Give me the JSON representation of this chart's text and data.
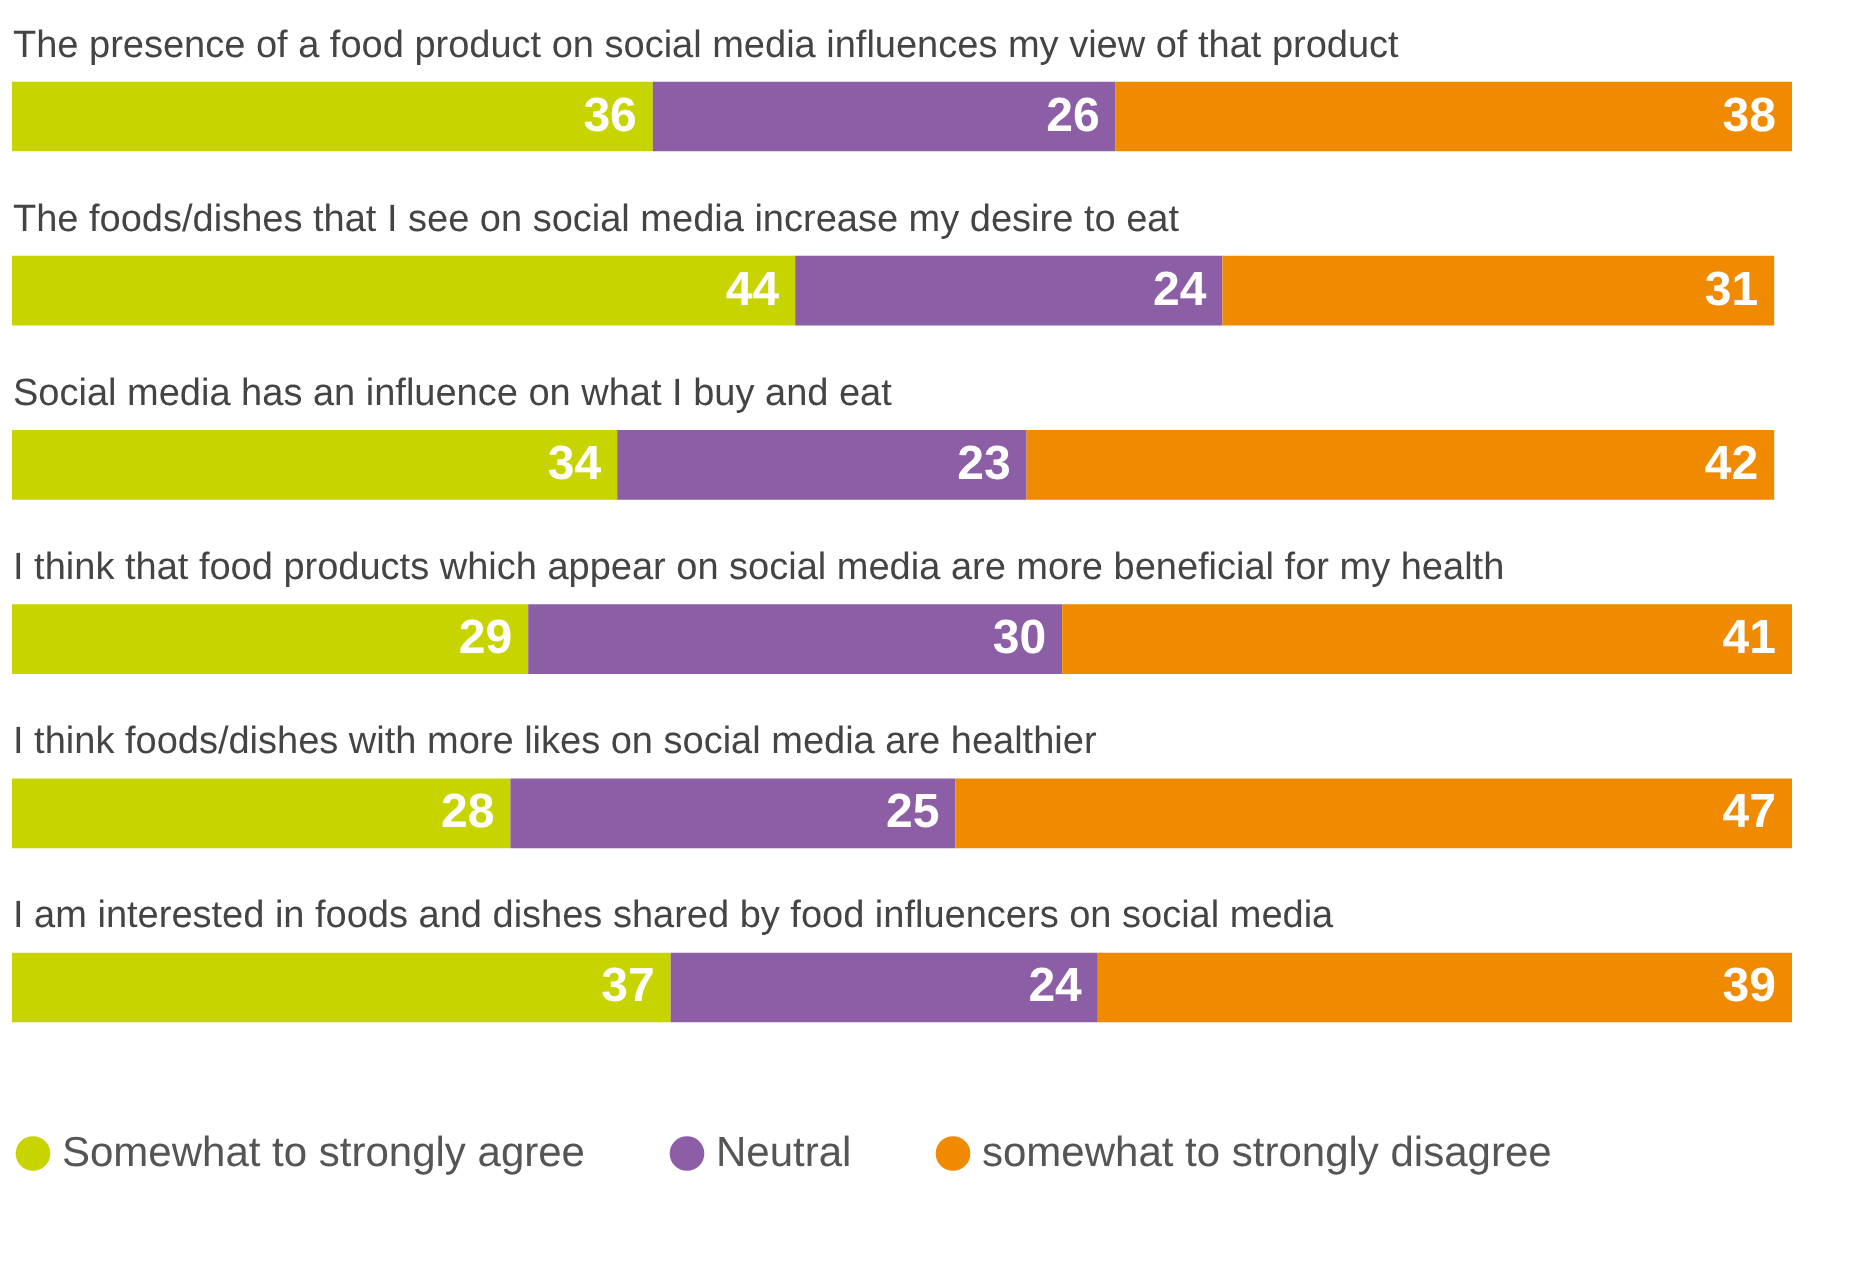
{
  "chart_data": {
    "type": "bar",
    "orientation": "horizontal",
    "stacked": true,
    "data_labels": true,
    "legend": "bottom left",
    "tick_labels": "y",
    "categories": [
      "The presence of a food product on social media influences my view of that product",
      "The foods/dishes that I see on social media increase my desire to eat",
      "Social media has an influence on what I buy and eat",
      "I think that food products which appear on social media are more  beneficial for my health",
      "I think foods/dishes with more likes on social media are healthier",
      "I am interested in foods and dishes shared by food influencers on social media"
    ],
    "series": [
      {
        "name": "Somewhat to strongly agree",
        "color": "#c8d400",
        "values": [
          36,
          44,
          34,
          29,
          28,
          37
        ]
      },
      {
        "name": "Neutral",
        "color": "#8b5ea6",
        "values": [
          26,
          24,
          23,
          30,
          25,
          24
        ]
      },
      {
        "name": "somewhat to strongly disagree",
        "color": "#f08a00",
        "values": [
          38,
          31,
          42,
          41,
          47,
          39
        ]
      }
    ]
  }
}
